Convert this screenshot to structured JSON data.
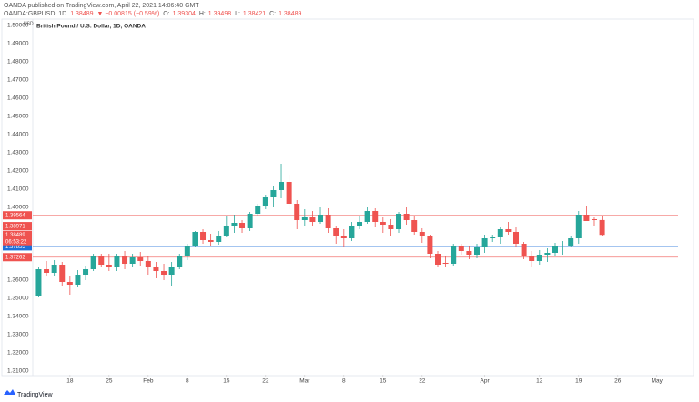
{
  "header": {
    "publisher": "OANDA published on TradingView.com, April 22, 2021 14:06:40 GMT",
    "symbol": "OANDA:GBPUSD, 1D",
    "change": "▼ −0.00815 (−0.59%)",
    "o": "O:",
    "h": "H:",
    "l": "L:",
    "c": "C:"
  },
  "footer": "TradingView",
  "chart_data": {
    "type": "candlestick",
    "title": "British Pound / U.S. Dollar, 1D, OANDA",
    "currency": "USD",
    "series": {
      "open": [
        1.3515,
        1.366,
        1.364,
        1.3685,
        1.359,
        1.3575,
        1.363,
        1.366,
        1.3735,
        1.3685,
        1.367,
        1.373,
        1.369,
        1.3725,
        1.3705,
        1.367,
        1.365,
        1.363,
        1.367,
        1.3735,
        1.379,
        1.3865,
        1.382,
        1.381,
        1.3845,
        1.39,
        1.3915,
        1.3885,
        1.3965,
        1.401,
        1.4055,
        1.4095,
        1.414,
        1.402,
        1.393,
        1.3945,
        1.392,
        1.396,
        1.3885,
        1.384,
        1.383,
        1.39,
        1.392,
        1.398,
        1.392,
        1.3905,
        1.388,
        1.3965,
        1.393,
        1.3865,
        1.384,
        1.3745,
        1.3695,
        1.369,
        1.379,
        1.376,
        1.374,
        1.378,
        1.383,
        1.3835,
        1.388,
        1.3865,
        1.38,
        1.373,
        1.3705,
        1.374,
        1.375,
        1.3785,
        1.379,
        1.383,
        1.396,
        1.3935,
        1.39304
      ],
      "high": [
        1.367,
        1.3705,
        1.371,
        1.37,
        1.362,
        1.3655,
        1.368,
        1.3745,
        1.3745,
        1.3745,
        1.3745,
        1.376,
        1.3745,
        1.3755,
        1.373,
        1.37,
        1.369,
        1.37,
        1.3745,
        1.38,
        1.387,
        1.388,
        1.3855,
        1.387,
        1.395,
        1.396,
        1.393,
        1.3975,
        1.402,
        1.407,
        1.4115,
        1.424,
        1.418,
        1.404,
        1.399,
        1.398,
        1.4,
        1.3995,
        1.39,
        1.388,
        1.392,
        1.395,
        1.4,
        1.3995,
        1.3945,
        1.3935,
        1.3975,
        1.4,
        1.395,
        1.3885,
        1.385,
        1.376,
        1.373,
        1.38,
        1.38,
        1.379,
        1.38,
        1.385,
        1.385,
        1.389,
        1.392,
        1.389,
        1.381,
        1.376,
        1.3765,
        1.3775,
        1.3805,
        1.3815,
        1.384,
        1.398,
        1.401,
        1.3945,
        1.39498
      ],
      "low": [
        1.3505,
        1.362,
        1.362,
        1.357,
        1.352,
        1.356,
        1.36,
        1.365,
        1.367,
        1.365,
        1.365,
        1.366,
        1.367,
        1.368,
        1.363,
        1.361,
        1.36,
        1.3565,
        1.366,
        1.371,
        1.378,
        1.38,
        1.379,
        1.3795,
        1.3835,
        1.386,
        1.386,
        1.387,
        1.395,
        1.399,
        1.4,
        1.405,
        1.399,
        1.388,
        1.39,
        1.39,
        1.391,
        1.386,
        1.38,
        1.378,
        1.3815,
        1.388,
        1.391,
        1.389,
        1.386,
        1.384,
        1.386,
        1.3905,
        1.385,
        1.3805,
        1.372,
        1.367,
        1.367,
        1.368,
        1.374,
        1.3715,
        1.372,
        1.375,
        1.381,
        1.38,
        1.385,
        1.378,
        1.3715,
        1.367,
        1.3685,
        1.37,
        1.373,
        1.374,
        1.378,
        1.38,
        1.3925,
        1.3895,
        1.38421
      ],
      "close": [
        1.366,
        1.364,
        1.3685,
        1.359,
        1.3575,
        1.363,
        1.366,
        1.3735,
        1.3685,
        1.367,
        1.373,
        1.369,
        1.3725,
        1.3705,
        1.367,
        1.365,
        1.363,
        1.367,
        1.3735,
        1.379,
        1.3865,
        1.382,
        1.381,
        1.3845,
        1.39,
        1.3915,
        1.3885,
        1.3965,
        1.401,
        1.4055,
        1.4095,
        1.414,
        1.402,
        1.393,
        1.3945,
        1.392,
        1.396,
        1.3885,
        1.384,
        1.383,
        1.39,
        1.392,
        1.398,
        1.392,
        1.3905,
        1.388,
        1.3965,
        1.393,
        1.3865,
        1.384,
        1.3745,
        1.3685,
        1.369,
        1.379,
        1.376,
        1.374,
        1.378,
        1.383,
        1.3835,
        1.388,
        1.3865,
        1.38,
        1.373,
        1.3705,
        1.374,
        1.375,
        1.3785,
        1.379,
        1.383,
        1.396,
        1.3925,
        1.393,
        1.38489
      ]
    },
    "up_color": "#26a69a",
    "down_color": "#ef5350",
    "xlim": [
      -0.75,
      81.7
    ],
    "xticks": [
      {
        "value": 4,
        "label": "18"
      },
      {
        "value": 9,
        "label": "25"
      },
      {
        "value": 14,
        "label": "Feb"
      },
      {
        "value": 19,
        "label": "8"
      },
      {
        "value": 24,
        "label": "15"
      },
      {
        "value": 29,
        "label": "22"
      },
      {
        "value": 34,
        "label": "Mar"
      },
      {
        "value": 39,
        "label": "8"
      },
      {
        "value": 44,
        "label": "15"
      },
      {
        "value": 49,
        "label": "22"
      },
      {
        "value": 57,
        "label": "Apr"
      },
      {
        "value": 64,
        "label": "12"
      },
      {
        "value": 69,
        "label": "19"
      },
      {
        "value": 74,
        "label": "26"
      },
      {
        "value": 79,
        "label": "May"
      }
    ],
    "ylim": [
      1.308,
      1.502
    ],
    "yticks": [
      {
        "value": 1.31,
        "label": "1.31000"
      },
      {
        "value": 1.32,
        "label": "1.32000"
      },
      {
        "value": 1.33,
        "label": "1.33000"
      },
      {
        "value": 1.34,
        "label": "1.34000"
      },
      {
        "value": 1.35,
        "label": "1.35000"
      },
      {
        "value": 1.36,
        "label": "1.36000"
      },
      {
        "value": 1.4,
        "label": "1.40000"
      },
      {
        "value": 1.41,
        "label": "1.41000"
      },
      {
        "value": 1.42,
        "label": "1.42000"
      },
      {
        "value": 1.43,
        "label": "1.43000"
      },
      {
        "value": 1.44,
        "label": "1.44000"
      },
      {
        "value": 1.45,
        "label": "1.45000"
      },
      {
        "value": 1.46,
        "label": "1.46000"
      },
      {
        "value": 1.47,
        "label": "1.47000"
      },
      {
        "value": 1.48,
        "label": "1.48000"
      },
      {
        "value": 1.49,
        "label": "1.49000"
      },
      {
        "value": 1.5,
        "label": "1.50000"
      }
    ],
    "grid": false,
    "levels": [
      {
        "value": 1.39564,
        "color": "#ef5350"
      },
      {
        "value": 1.38971,
        "color": "#ef5350"
      },
      {
        "value": 1.37855,
        "color": "#1e6fd9"
      },
      {
        "value": 1.37262,
        "color": "#ef5350"
      }
    ],
    "countdown": "06:53:22"
  }
}
